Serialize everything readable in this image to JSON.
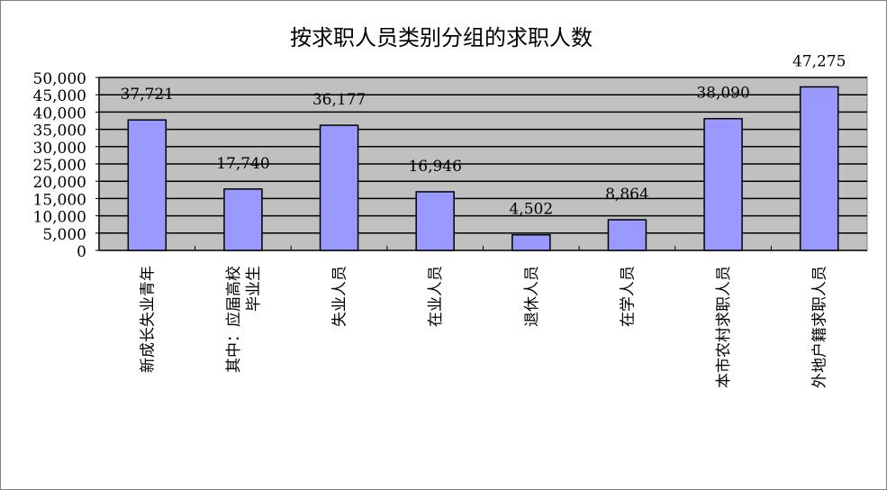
{
  "chart_data": {
    "type": "bar",
    "title": "按求职人员类别分组的求职人数",
    "categories": [
      [
        "新成长失业青年"
      ],
      [
        "其中：应届高校",
        "毕业生"
      ],
      [
        "失业人员"
      ],
      [
        "在业人员"
      ],
      [
        "退休人员"
      ],
      [
        "在学人员"
      ],
      [
        "本市农村求职人员"
      ],
      [
        "外地户籍求职人员"
      ]
    ],
    "values": [
      37721,
      17740,
      36177,
      16946,
      4502,
      8864,
      38090,
      47275
    ],
    "data_labels": [
      "37,721",
      "17,740",
      "36,177",
      "16,946",
      "4,502",
      "8,864",
      "38,090",
      "47,275"
    ],
    "ylim": [
      0,
      50000
    ],
    "yticks": [
      "0",
      "5,000",
      "10,000",
      "15,000",
      "20,000",
      "25,000",
      "30,000",
      "35,000",
      "40,000",
      "45,000",
      "50,000"
    ],
    "grid": true,
    "legend": "none",
    "colors": {
      "bar": "#9999FF",
      "plot_bg": "#C0C0C0",
      "grid": "#000000"
    }
  }
}
